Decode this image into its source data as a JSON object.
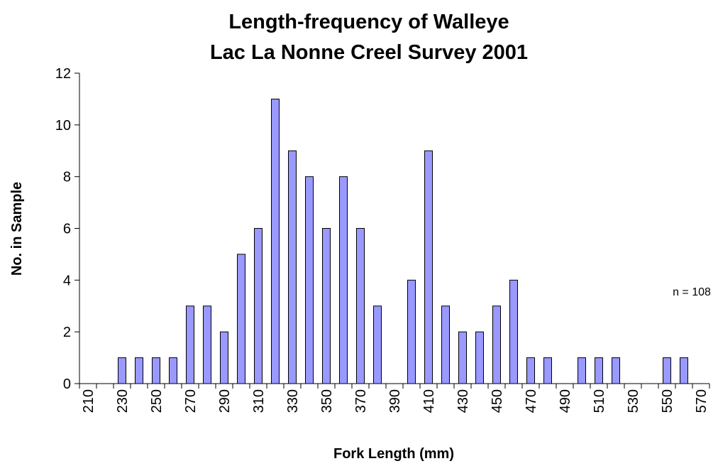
{
  "chart_data": {
    "type": "bar",
    "title": "Length-frequency of Walleye",
    "subtitle": "Lac La Nonne Creel Survey 2001",
    "x_label": "Fork Length (mm)",
    "y_label": "No. in Sample",
    "annotation": "n = 108",
    "categories": [
      "210",
      null,
      "230",
      null,
      "250",
      null,
      "270",
      null,
      "290",
      null,
      "310",
      null,
      "330",
      null,
      "350",
      null,
      "370",
      null,
      "390",
      null,
      "410",
      null,
      "430",
      null,
      "450",
      null,
      "470",
      null,
      "490",
      null,
      "510",
      null,
      "530",
      null,
      "550",
      null,
      "570"
    ],
    "values": [
      0,
      0,
      1,
      1,
      1,
      1,
      3,
      3,
      2,
      5,
      6,
      11,
      9,
      8,
      6,
      8,
      6,
      3,
      0,
      4,
      9,
      3,
      2,
      2,
      3,
      4,
      1,
      1,
      0,
      1,
      1,
      1,
      0,
      0,
      1,
      1,
      0
    ],
    "color": "#9999ff",
    "ylim": [
      0,
      12
    ],
    "yticks": [
      0,
      2,
      4,
      6,
      8,
      10,
      12
    ],
    "grid": false
  }
}
